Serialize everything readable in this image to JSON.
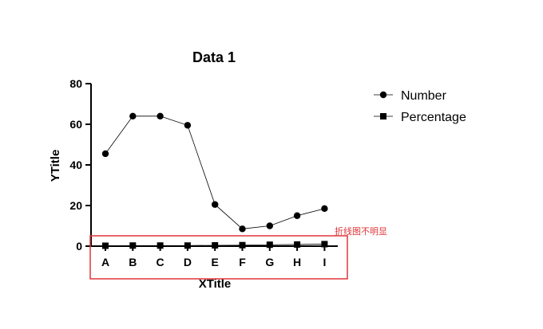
{
  "chart_data": {
    "type": "line",
    "title": "Data 1",
    "xlabel": "XTitle",
    "ylabel": "YTitle",
    "categories": [
      "A",
      "B",
      "C",
      "D",
      "E",
      "F",
      "G",
      "H",
      "I"
    ],
    "ylim": [
      0,
      80
    ],
    "yticks": [
      0,
      20,
      40,
      60,
      80
    ],
    "grid": false,
    "legend_position": "right",
    "series": [
      {
        "name": "Number",
        "marker": "circle",
        "values": [
          45.5,
          64,
          64,
          59.5,
          20.5,
          8.5,
          10,
          15,
          18.5
        ]
      },
      {
        "name": "Percentage",
        "marker": "square",
        "values": [
          0.2,
          0.3,
          0.3,
          0.3,
          0.4,
          0.5,
          0.7,
          0.8,
          1.0
        ]
      }
    ],
    "annotation": {
      "text": "折线图不明显",
      "color": "#e0353a"
    }
  }
}
